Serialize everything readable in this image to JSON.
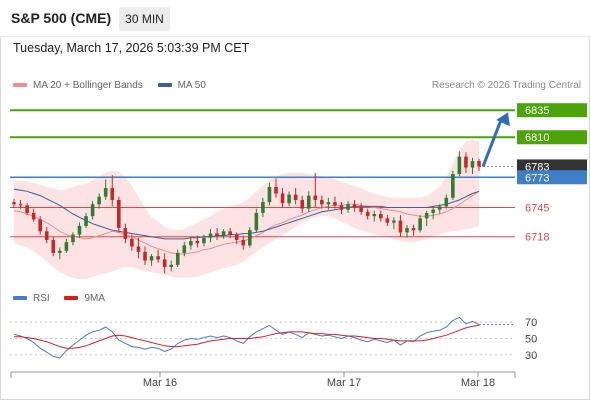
{
  "header": {
    "symbol": "S&P 500 (CME)",
    "timeframe": "30 MIN"
  },
  "timestamp": "Tuesday, March 17, 2026 5:03:39 PM CET",
  "legend": [
    {
      "label": "MA 20 + Bollinger Bands",
      "color": "#f08c8c"
    },
    {
      "label": "MA 50",
      "color": "#3a5f9e"
    }
  ],
  "credit": "Research © 2026 Trading Central",
  "colors": {
    "support": "#e0494b",
    "resistance": "#4ca40a",
    "pivot": "#3e7ec9",
    "bullish": "#2e7d32",
    "bearish": "#c62828",
    "band": "#fde3e3",
    "arrow": "#2f6db5"
  },
  "chart_data": [
    {
      "type": "candlestick",
      "title": "S&P 500 (CME) 30 MIN",
      "x_ticks": [
        "Mar 16",
        "Mar 17",
        "Mar 18"
      ],
      "ylim": [
        6680,
        6850
      ],
      "levels": [
        {
          "value": 6835,
          "label": "6835",
          "kind": "resistance"
        },
        {
          "value": 6810,
          "label": "6810",
          "kind": "resistance"
        },
        {
          "value": 6783,
          "label": "6783",
          "kind": "last"
        },
        {
          "value": 6773,
          "label": "6773",
          "kind": "pivot"
        },
        {
          "value": 6745,
          "label": "6745",
          "kind": "support"
        },
        {
          "value": 6718,
          "label": "6718",
          "kind": "support"
        }
      ],
      "candles": [
        [
          6750,
          6753,
          6745,
          6748
        ],
        [
          6748,
          6752,
          6744,
          6747
        ],
        [
          6747,
          6749,
          6738,
          6740
        ],
        [
          6740,
          6744,
          6732,
          6734
        ],
        [
          6734,
          6737,
          6720,
          6723
        ],
        [
          6723,
          6727,
          6712,
          6715
        ],
        [
          6715,
          6718,
          6700,
          6703
        ],
        [
          6703,
          6708,
          6697,
          6705
        ],
        [
          6705,
          6716,
          6703,
          6713
        ],
        [
          6713,
          6722,
          6710,
          6720
        ],
        [
          6720,
          6731,
          6717,
          6728
        ],
        [
          6728,
          6740,
          6726,
          6737
        ],
        [
          6737,
          6751,
          6734,
          6748
        ],
        [
          6748,
          6758,
          6744,
          6755
        ],
        [
          6755,
          6771,
          6752,
          6763
        ],
        [
          6763,
          6775,
          6746,
          6752
        ],
        [
          6752,
          6755,
          6722,
          6726
        ],
        [
          6726,
          6730,
          6712,
          6716
        ],
        [
          6716,
          6720,
          6705,
          6709
        ],
        [
          6709,
          6717,
          6698,
          6704
        ],
        [
          6704,
          6709,
          6692,
          6696
        ],
        [
          6696,
          6702,
          6691,
          6700
        ],
        [
          6700,
          6706,
          6694,
          6697
        ],
        [
          6697,
          6703,
          6684,
          6690
        ],
        [
          6690,
          6696,
          6686,
          6692
        ],
        [
          6692,
          6706,
          6690,
          6703
        ],
        [
          6703,
          6713,
          6700,
          6710
        ],
        [
          6710,
          6718,
          6706,
          6714
        ],
        [
          6714,
          6719,
          6708,
          6712
        ],
        [
          6712,
          6720,
          6709,
          6717
        ],
        [
          6717,
          6725,
          6713,
          6721
        ],
        [
          6721,
          6726,
          6715,
          6719
        ],
        [
          6719,
          6725,
          6716,
          6723
        ],
        [
          6723,
          6726,
          6717,
          6720
        ],
        [
          6720,
          6722,
          6711,
          6715
        ],
        [
          6715,
          6719,
          6706,
          6710
        ],
        [
          6710,
          6727,
          6708,
          6724
        ],
        [
          6724,
          6744,
          6722,
          6740
        ],
        [
          6740,
          6754,
          6736,
          6750
        ],
        [
          6750,
          6768,
          6747,
          6764
        ],
        [
          6764,
          6772,
          6754,
          6758
        ],
        [
          6758,
          6763,
          6745,
          6749
        ],
        [
          6749,
          6760,
          6746,
          6757
        ],
        [
          6757,
          6763,
          6748,
          6752
        ],
        [
          6752,
          6756,
          6740,
          6744
        ],
        [
          6744,
          6760,
          6741,
          6756
        ],
        [
          6756,
          6777,
          6745,
          6752
        ],
        [
          6752,
          6756,
          6744,
          6748
        ],
        [
          6748,
          6754,
          6743,
          6750
        ],
        [
          6750,
          6755,
          6744,
          6747
        ],
        [
          6747,
          6750,
          6739,
          6743
        ],
        [
          6743,
          6751,
          6740,
          6748
        ],
        [
          6748,
          6752,
          6741,
          6745
        ],
        [
          6745,
          6749,
          6738,
          6741
        ],
        [
          6741,
          6744,
          6734,
          6737
        ],
        [
          6737,
          6742,
          6732,
          6739
        ],
        [
          6739,
          6742,
          6732,
          6735
        ],
        [
          6735,
          6738,
          6728,
          6731
        ],
        [
          6731,
          6736,
          6725,
          6733
        ],
        [
          6733,
          6738,
          6718,
          6722
        ],
        [
          6722,
          6729,
          6717,
          6726
        ],
        [
          6726,
          6729,
          6719,
          6724
        ],
        [
          6724,
          6738,
          6722,
          6735
        ],
        [
          6735,
          6742,
          6728,
          6740
        ],
        [
          6740,
          6746,
          6734,
          6743
        ],
        [
          6743,
          6748,
          6739,
          6746
        ],
        [
          6746,
          6757,
          6744,
          6754
        ],
        [
          6754,
          6779,
          6752,
          6776
        ],
        [
          6776,
          6797,
          6774,
          6792
        ],
        [
          6792,
          6796,
          6777,
          6782
        ],
        [
          6782,
          6791,
          6776,
          6788
        ],
        [
          6788,
          6790,
          6779,
          6783
        ]
      ],
      "ma20": [
        6742,
        6741,
        6739,
        6737,
        6734,
        6731,
        6727,
        6723,
        6720,
        6718,
        6717,
        6716,
        6717,
        6719,
        6721,
        6723,
        6722,
        6720,
        6718,
        6715,
        6712,
        6709,
        6707,
        6705,
        6703,
        6702,
        6702,
        6703,
        6704,
        6706,
        6707,
        6709,
        6711,
        6712,
        6713,
        6714,
        6716,
        6719,
        6722,
        6726,
        6729,
        6731,
        6734,
        6736,
        6738,
        6741,
        6743,
        6745,
        6746,
        6747,
        6747,
        6748,
        6748,
        6747,
        6746,
        6745,
        6744,
        6743,
        6742,
        6741,
        6739,
        6738,
        6737,
        6737,
        6738,
        6739,
        6741,
        6744,
        6748,
        6752,
        6756,
        6760
      ],
      "ma50": [
        6762,
        6761,
        6760,
        6758,
        6756,
        6753,
        6750,
        6747,
        6743,
        6739,
        6736,
        6733,
        6730,
        6728,
        6726,
        6724,
        6723,
        6722,
        6721,
        6720,
        6719,
        6718,
        6717,
        6716,
        6716,
        6716,
        6716,
        6717,
        6717,
        6718,
        6718,
        6719,
        6719,
        6720,
        6720,
        6721,
        6721,
        6722,
        6723,
        6725,
        6727,
        6729,
        6731,
        6733,
        6735,
        6737,
        6739,
        6741,
        6742,
        6743,
        6744,
        6745,
        6746,
        6746,
        6746,
        6746,
        6746,
        6745,
        6745,
        6745,
        6745,
        6745,
        6745,
        6745,
        6746,
        6747,
        6748,
        6750,
        6752,
        6755,
        6758,
        6760
      ],
      "bb_upper": [
        6770,
        6770,
        6769,
        6768,
        6766,
        6764,
        6763,
        6761,
        6762,
        6764,
        6766,
        6767,
        6770,
        6774,
        6777,
        6779,
        6778,
        6773,
        6765,
        6755,
        6745,
        6736,
        6732,
        6727,
        6725,
        6724,
        6725,
        6728,
        6731,
        6734,
        6737,
        6741,
        6744,
        6746,
        6748,
        6750,
        6754,
        6760,
        6765,
        6770,
        6774,
        6776,
        6777,
        6777,
        6777,
        6776,
        6775,
        6774,
        6773,
        6771,
        6769,
        6767,
        6765,
        6763,
        6760,
        6758,
        6756,
        6755,
        6754,
        6754,
        6754,
        6754,
        6754,
        6756,
        6760,
        6765,
        6773,
        6786,
        6798,
        6806,
        6808,
        6806
      ],
      "bb_lower": [
        6712,
        6710,
        6708,
        6705,
        6700,
        6695,
        6690,
        6685,
        6682,
        6680,
        6679,
        6679,
        6681,
        6683,
        6684,
        6686,
        6688,
        6690,
        6690,
        6688,
        6686,
        6685,
        6684,
        6683,
        6681,
        6680,
        6680,
        6680,
        6681,
        6683,
        6685,
        6687,
        6689,
        6690,
        6692,
        6695,
        6700,
        6704,
        6708,
        6712,
        6716,
        6719,
        6723,
        6727,
        6731,
        6734,
        6736,
        6737,
        6737,
        6735,
        6732,
        6729,
        6726,
        6724,
        6722,
        6720,
        6719,
        6718,
        6716,
        6714,
        6713,
        6713,
        6714,
        6716,
        6718,
        6720,
        6722,
        6723,
        6724,
        6725,
        6726,
        6728
      ]
    },
    {
      "type": "line",
      "title": "RSI",
      "ylim": [
        15,
        80
      ],
      "y_ticks": [
        70,
        50,
        30
      ],
      "series": [
        {
          "name": "RSI",
          "color": "#4a78cc",
          "values": [
            55,
            53,
            50,
            45,
            38,
            33,
            28,
            26,
            35,
            42,
            48,
            54,
            58,
            60,
            64,
            58,
            48,
            44,
            40,
            39,
            37,
            39,
            38,
            34,
            37,
            44,
            48,
            50,
            49,
            51,
            53,
            51,
            53,
            51,
            47,
            44,
            52,
            58,
            62,
            66,
            60,
            55,
            58,
            55,
            51,
            57,
            55,
            53,
            54,
            52,
            50,
            53,
            51,
            48,
            46,
            49,
            47,
            45,
            48,
            42,
            47,
            46,
            53,
            57,
            59,
            60,
            64,
            72,
            76,
            68,
            71,
            67
          ]
        },
        {
          "name": "9MA",
          "color": "#d62020",
          "values": [
            52,
            52,
            51,
            50,
            48,
            46,
            43,
            40,
            38,
            38,
            39,
            41,
            44,
            47,
            50,
            53,
            54,
            53,
            51,
            49,
            47,
            45,
            43,
            41,
            40,
            40,
            41,
            42,
            43,
            45,
            47,
            48,
            49,
            50,
            50,
            50,
            50,
            51,
            52,
            54,
            56,
            57,
            58,
            58,
            58,
            57,
            56,
            56,
            55,
            55,
            54,
            53,
            53,
            52,
            51,
            50,
            50,
            49,
            48,
            47,
            47,
            47,
            47,
            48,
            50,
            52,
            54,
            57,
            60,
            63,
            65,
            66
          ]
        }
      ]
    }
  ]
}
